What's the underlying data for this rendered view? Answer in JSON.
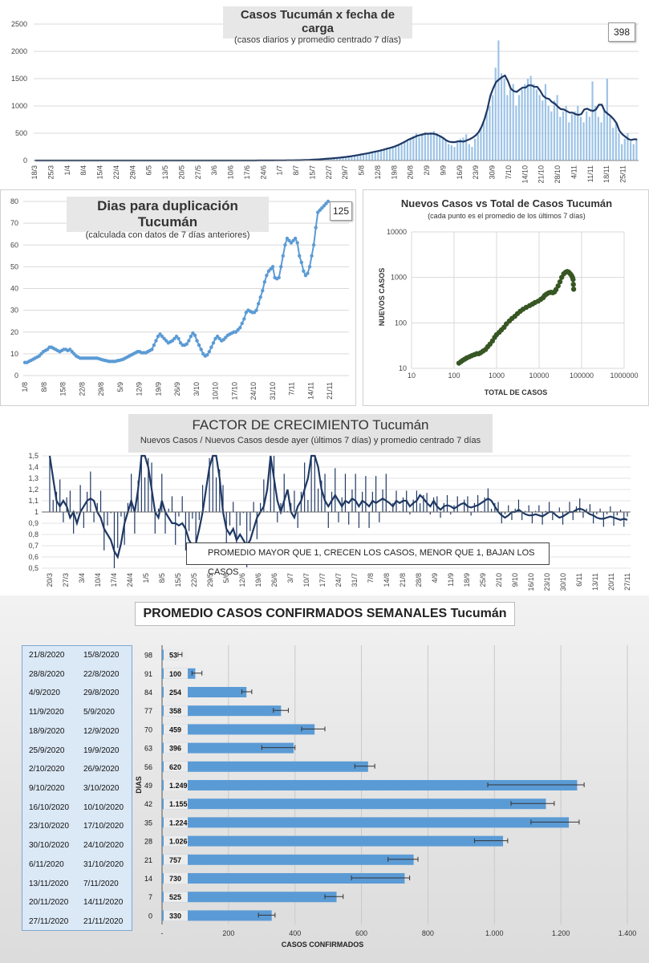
{
  "panel1": {
    "title": "Casos  Tucumán  x fecha de carga",
    "subtitle": "(casos diarios y promedio  centrado 7 días)",
    "badge": "398",
    "y_ticks": [
      "2500",
      "2000",
      "1500",
      "1000",
      "500",
      "0"
    ],
    "x_ticks": [
      "18/3",
      "25/3",
      "1/4",
      "8/4",
      "15/4",
      "22/4",
      "29/4",
      "6/5",
      "13/5",
      "20/5",
      "27/5",
      "3/6",
      "10/6",
      "17/6",
      "24/6",
      "1/7",
      "8/7",
      "15/7",
      "22/7",
      "29/7",
      "5/8",
      "12/8",
      "19/8",
      "26/8",
      "2/9",
      "9/9",
      "16/9",
      "23/9",
      "30/9",
      "7/10",
      "14/10",
      "21/10",
      "28/10",
      "4/11",
      "11/11",
      "18/11",
      "25/11"
    ]
  },
  "panel2": {
    "title": "Dias para duplicación Tucumán",
    "subtitle": "(calculada con datos de 7 días anteriores)",
    "badge": "125",
    "y_ticks": [
      "80",
      "70",
      "60",
      "50",
      "40",
      "30",
      "20",
      "10",
      "0"
    ],
    "x_ticks": [
      "1/8",
      "8/8",
      "15/8",
      "22/8",
      "29/8",
      "5/9",
      "12/9",
      "19/9",
      "26/9",
      "3/10",
      "10/10",
      "17/10",
      "24/10",
      "31/10",
      "7/11",
      "14/11",
      "21/11"
    ]
  },
  "panel3": {
    "title": "Nuevos Casos vs Total de Casos Tucumán",
    "subtitle": "(cada punto es el promedio de los últimos 7 días)",
    "xlabel": "TOTAL DE CASOS",
    "ylabel": "NUEVOS  CASOS",
    "y_ticks": [
      "10000",
      "1000",
      "100",
      "10"
    ],
    "x_ticks": [
      "10",
      "100",
      "1000",
      "10000",
      "100000",
      "1000000"
    ]
  },
  "panel4": {
    "title": "FACTOR DE CRECIMIENTO Tucumán",
    "subtitle": "Nuevos Casos  / Nuevos Casos desde ayer (últimos 7 días) y promedio  centrado 7 días",
    "note": "PROMEDIO MAYOR QUE 1, CRECEN LOS CASOS, MENOR QUE 1, BAJAN LOS CASOS",
    "y_ticks": [
      "1,5",
      "1,4",
      "1,3",
      "1,2",
      "1,1",
      "1",
      "0,9",
      "0,8",
      "0,7",
      "0,6",
      "0,5"
    ],
    "x_ticks": [
      "20/3",
      "27/3",
      "3/4",
      "10/4",
      "17/4",
      "24/4",
      "1/5",
      "8/5",
      "15/5",
      "22/5",
      "29/5",
      "5/6",
      "12/6",
      "19/6",
      "26/6",
      "3/7",
      "10/7",
      "17/7",
      "24/7",
      "31/7",
      "7/8",
      "14/8",
      "21/8",
      "28/8",
      "4/9",
      "11/9",
      "18/9",
      "25/9",
      "2/10",
      "9/10",
      "16/10",
      "23/10",
      "30/10",
      "6/11",
      "13/11",
      "20/11",
      "27/11"
    ]
  },
  "panel5": {
    "title": "PROMEDIO CASOS CONFIRMADOS SEMANALES Tucumán",
    "ylabel": "DIAS",
    "xlabel": "CASOS CONFIRMADOS",
    "x_ticks": [
      "-",
      "200",
      "400",
      "600",
      "800",
      "1.000",
      "1.200",
      "1.400"
    ],
    "weeks": [
      {
        "end": "21/8/2020",
        "start": "15/8/2020",
        "dias": "98",
        "label": "53"
      },
      {
        "end": "28/8/2020",
        "start": "22/8/2020",
        "dias": "91",
        "label": "100"
      },
      {
        "end": "4/9/2020",
        "start": "29/8/2020",
        "dias": "84",
        "label": "254"
      },
      {
        "end": "11/9/2020",
        "start": "5/9/2020",
        "dias": "77",
        "label": "358"
      },
      {
        "end": "18/9/2020",
        "start": "12/9/2020",
        "dias": "70",
        "label": "459"
      },
      {
        "end": "25/9/2020",
        "start": "19/9/2020",
        "dias": "63",
        "label": "396"
      },
      {
        "end": "2/10/2020",
        "start": "26/9/2020",
        "dias": "56",
        "label": "620"
      },
      {
        "end": "9/10/2020",
        "start": "3/10/2020",
        "dias": "49",
        "label": "1.249"
      },
      {
        "end": "16/10/2020",
        "start": "10/10/2020",
        "dias": "42",
        "label": "1.155"
      },
      {
        "end": "23/10/2020",
        "start": "17/10/2020",
        "dias": "35",
        "label": "1.224"
      },
      {
        "end": "30/10/2020",
        "start": "24/10/2020",
        "dias": "28",
        "label": "1.026"
      },
      {
        "end": "6/11/2020",
        "start": "31/10/2020",
        "dias": "21",
        "label": "757"
      },
      {
        "end": "13/11/2020",
        "start": "7/11/2020",
        "dias": "14",
        "label": "730"
      },
      {
        "end": "20/11/2020",
        "start": "14/11/2020",
        "dias": "7",
        "label": "525"
      },
      {
        "end": "27/11/2020",
        "start": "21/11/2020",
        "dias": "0",
        "label": "330"
      }
    ]
  },
  "chart_data": [
    {
      "type": "bar",
      "title": "Casos  Tucumán  x fecha de carga",
      "ylim": [
        0,
        2500
      ],
      "x_start": "18/3",
      "x_end": "25/11",
      "series": [
        {
          "values": [
            0,
            0,
            1,
            0,
            2,
            0,
            1,
            0,
            0,
            1,
            0,
            1,
            2,
            0,
            1,
            0,
            0,
            1,
            0,
            0,
            1,
            0,
            0,
            0,
            1,
            0,
            2,
            0,
            0,
            1,
            0,
            0,
            1,
            0,
            0,
            0,
            1,
            0,
            0,
            0,
            0,
            0,
            1,
            0,
            0,
            1,
            0,
            0,
            0,
            0,
            0,
            1,
            0,
            0,
            0,
            0,
            1,
            0,
            0,
            0,
            0,
            0,
            1,
            0,
            0,
            0,
            0,
            0,
            0,
            1,
            0,
            0,
            0,
            0,
            1,
            2,
            0,
            1,
            0,
            2,
            3,
            1,
            2,
            4,
            2,
            3,
            5,
            3,
            6,
            4,
            8,
            6,
            10,
            8,
            14,
            12,
            18,
            22,
            26,
            30,
            35,
            40,
            42,
            50,
            48,
            60,
            65,
            70,
            82,
            90,
            100,
            110,
            120,
            130,
            140,
            150,
            160,
            180,
            190,
            200,
            210,
            230,
            250,
            270,
            280,
            300,
            340,
            380,
            410,
            450,
            500,
            430,
            460,
            520,
            480,
            510,
            540,
            500,
            450,
            420,
            380,
            300,
            280,
            250,
            330,
            400,
            420,
            480,
            300,
            250,
            400,
            480,
            600,
            700,
            880,
            1000,
            1200,
            1700,
            2200,
            1600,
            1500,
            1200,
            1300,
            1400,
            1000,
            1200,
            1300,
            1400,
            1500,
            1550,
            1400,
            1300,
            1200,
            1100,
            1400,
            1000,
            900,
            1100,
            1200,
            800,
            900,
            1000,
            700,
            850,
            900,
            1000,
            800,
            700,
            900,
            800,
            1450,
            1000,
            800,
            700,
            900,
            1500,
            800,
            600,
            700,
            500,
            300,
            400,
            500,
            350,
            300,
            400
          ]
        }
      ]
    },
    {
      "type": "line",
      "title": "Dias para duplicación Tucumán",
      "ylim": [
        0,
        80
      ],
      "x_start": "1/8",
      "x_end": "21/11",
      "series": [
        {
          "values": [
            6,
            6,
            6.5,
            7,
            7.5,
            8,
            8.5,
            9,
            10,
            11,
            11.5,
            12,
            13,
            13,
            12.5,
            12,
            11.5,
            11,
            11.5,
            12,
            12,
            11.5,
            12,
            11,
            10,
            9,
            8.5,
            8,
            8,
            8,
            8,
            8,
            8,
            8,
            8,
            8,
            7.8,
            7.5,
            7.2,
            7,
            6.8,
            6.5,
            6.5,
            6.5,
            6.5,
            6.8,
            7,
            7.2,
            7.5,
            8,
            8.5,
            9,
            9.5,
            10,
            10.5,
            11,
            11,
            10.5,
            10.5,
            10.5,
            11,
            11.5,
            12,
            14,
            16,
            18,
            19,
            18,
            17,
            16,
            15,
            15.5,
            16,
            17,
            18,
            17,
            15,
            14,
            14,
            14.5,
            16,
            18,
            19.5,
            18.5,
            16,
            14,
            12,
            10,
            9,
            9.5,
            11,
            13,
            15,
            17,
            18,
            17,
            16,
            16.5,
            17.5,
            18.5,
            19,
            19.5,
            20,
            20,
            21,
            22,
            24,
            26,
            29,
            30,
            29.5,
            29,
            29,
            30,
            33,
            36,
            39,
            43,
            46,
            48,
            49,
            50,
            45,
            44.5,
            45,
            50,
            55,
            60,
            63,
            62,
            61,
            62,
            63,
            61,
            55,
            52,
            48,
            46,
            47,
            50,
            55,
            60,
            68,
            75,
            76,
            77,
            78,
            79,
            80
          ]
        }
      ]
    },
    {
      "type": "scatter",
      "title": "Nuevos Casos vs Total de Casos Tucumán",
      "xlabel": "TOTAL DE CASOS",
      "ylabel": "NUEVOS  CASOS",
      "x_scale": "log",
      "y_scale": "log",
      "xlim": [
        10,
        1000000
      ],
      "ylim": [
        10,
        10000
      ],
      "series": [
        {
          "x": [
            130,
            145,
            160,
            180,
            200,
            230,
            260,
            300,
            340,
            380,
            420,
            480,
            550,
            620,
            700,
            800,
            900,
            1000,
            1150,
            1300,
            1500,
            1700,
            2000,
            2300,
            2700,
            3100,
            3600,
            4200,
            5000,
            6000,
            7000,
            8000,
            9500,
            11000,
            12500,
            13500,
            15000,
            17000,
            19000,
            21000,
            23000,
            25000,
            28000,
            31000,
            34000,
            38000,
            42000,
            46000,
            50000,
            54000,
            58000,
            61000,
            63000,
            64000,
            65000
          ],
          "y": [
            13,
            14,
            15,
            16,
            17,
            18,
            19,
            20,
            21,
            21,
            22,
            24,
            26,
            30,
            34,
            40,
            48,
            55,
            62,
            70,
            80,
            95,
            110,
            125,
            140,
            160,
            180,
            200,
            220,
            240,
            260,
            280,
            300,
            330,
            360,
            400,
            430,
            460,
            470,
            460,
            480,
            540,
            650,
            800,
            1000,
            1200,
            1300,
            1350,
            1300,
            1200,
            1100,
            1000,
            900,
            700,
            550
          ]
        }
      ]
    },
    {
      "type": "line",
      "title": "FACTOR DE CRECIMIENTO Tucumán",
      "ylim": [
        0.5,
        1.5
      ],
      "x_start": "20/3",
      "x_end": "27/11",
      "series": [
        {
          "values": [
            1.5,
            1.3,
            1.1,
            1.05,
            1.1,
            1.05,
            0.95,
            1.0,
            0.9,
            1.0,
            1.05,
            1.1,
            1.12,
            1.1,
            1.0,
            0.95,
            0.85,
            0.8,
            0.75,
            0.65,
            0.6,
            0.72,
            0.9,
            1.0,
            1.1,
            1.0,
            1.2,
            1.5,
            1.5,
            1.4,
            1.2,
            1.0,
            0.95,
            1.1,
            1.0,
            0.95,
            0.9,
            0.9,
            0.88,
            0.9,
            0.85,
            0.75,
            0.7,
            0.72,
            0.85,
            1.0,
            1.2,
            1.4,
            1.5,
            1.5,
            1.3,
            1.0,
            0.85,
            0.8,
            0.85,
            0.75,
            0.8,
            0.75,
            0.7,
            0.75,
            0.85,
            0.95,
            1.0,
            1.05,
            1.2,
            1.5,
            1.3,
            1.1,
            1.0,
            1.1,
            1.2,
            1.0,
            0.95,
            1.05,
            1.1,
            1.2,
            1.3,
            1.5,
            1.5,
            1.4,
            1.2,
            1.1,
            1.05,
            1.1,
            1.15,
            1.1,
            1.05,
            1.1,
            1.08,
            1.12,
            1.1,
            1.05,
            1.1,
            1.08,
            1.05,
            1.1,
            1.08,
            1.1,
            1.12,
            1.1,
            1.08,
            1.05,
            1.1,
            1.08,
            1.1,
            1.1,
            1.05,
            1.08,
            1.1,
            1.15,
            1.12,
            1.08,
            1.05,
            1.1,
            1.05,
            1.02,
            1.05,
            1.06,
            1.05,
            1.03,
            1.05,
            1.07,
            1.08,
            1.05,
            1.04,
            1.05,
            1.06,
            1.08,
            1.1,
            1.12,
            1.1,
            1.05,
            1.0,
            0.97,
            0.95,
            0.97,
            1.0,
            1.0,
            1.02,
            1.0,
            0.98,
            0.97,
            0.97,
            0.98,
            0.97,
            0.96,
            0.98,
            1.0,
            1.0,
            0.97,
            0.95,
            0.96,
            0.98,
            1.0,
            1.0,
            1.02,
            1.03,
            1.02,
            1.0,
            0.98,
            0.97,
            0.95,
            0.94,
            0.94,
            0.95,
            0.96,
            0.95,
            0.94,
            0.93,
            0.94,
            0.93
          ]
        }
      ]
    },
    {
      "type": "bar",
      "title": "PROMEDIO CASOS CONFIRMADOS SEMANALES Tucumán",
      "orientation": "horizontal",
      "xlabel": "CASOS CONFIRMADOS",
      "ylabel": "DIAS",
      "xlim": [
        0,
        1400
      ],
      "categories": [
        "98",
        "91",
        "84",
        "77",
        "70",
        "63",
        "56",
        "49",
        "42",
        "35",
        "28",
        "21",
        "14",
        "7",
        "0"
      ],
      "values": [
        53,
        100,
        254,
        358,
        459,
        396,
        620,
        1249,
        1155,
        1224,
        1026,
        757,
        730,
        525,
        330
      ],
      "error_low": [
        48,
        90,
        240,
        335,
        420,
        300,
        580,
        980,
        1050,
        1110,
        940,
        680,
        570,
        490,
        290
      ],
      "error_high": [
        60,
        120,
        270,
        380,
        490,
        400,
        640,
        1270,
        1180,
        1255,
        1040,
        770,
        745,
        545,
        340
      ]
    }
  ]
}
